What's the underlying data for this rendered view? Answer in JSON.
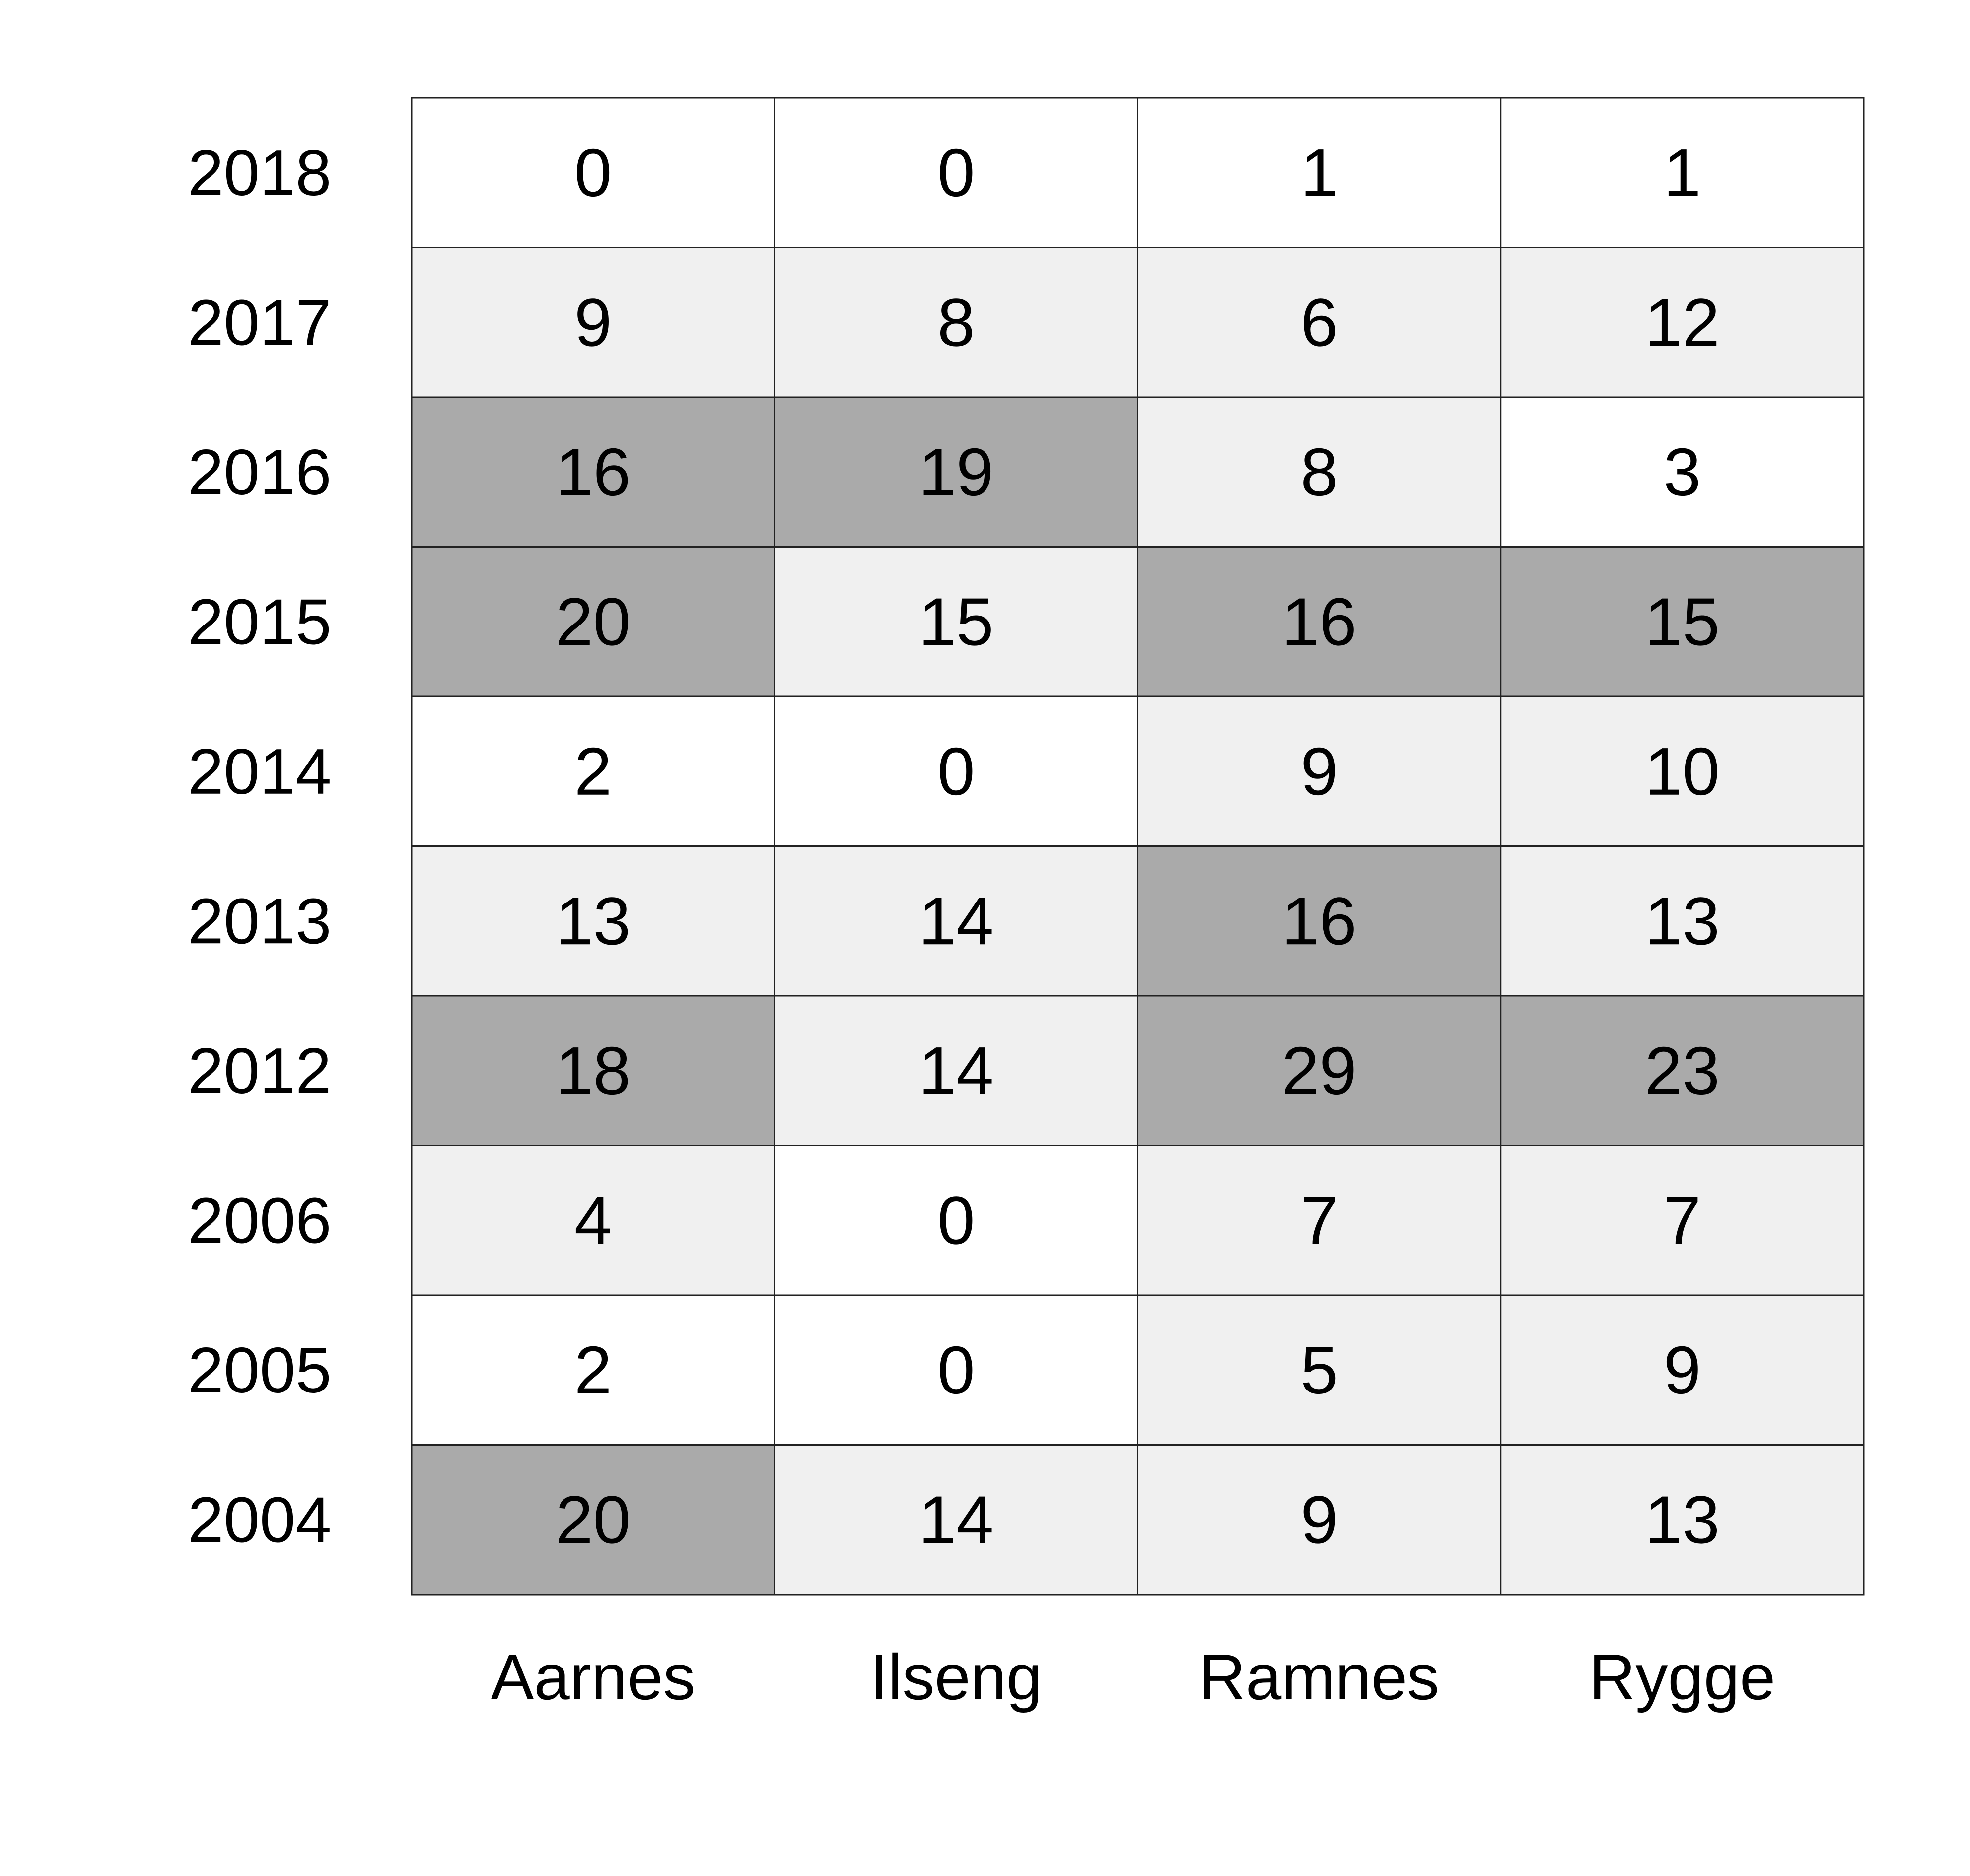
{
  "chart_data": {
    "type": "heatmap",
    "title": "",
    "xlabel": "",
    "ylabel": "",
    "columns": [
      "Aarnes",
      "Ilseng",
      "Ramnes",
      "Rygge"
    ],
    "rows": [
      "2018",
      "2017",
      "2016",
      "2015",
      "2014",
      "2013",
      "2012",
      "2006",
      "2005",
      "2004"
    ],
    "values": [
      [
        0,
        0,
        1,
        1
      ],
      [
        9,
        8,
        6,
        12
      ],
      [
        16,
        19,
        8,
        3
      ],
      [
        20,
        15,
        16,
        15
      ],
      [
        2,
        0,
        9,
        10
      ],
      [
        13,
        14,
        16,
        13
      ],
      [
        18,
        14,
        29,
        23
      ],
      [
        4,
        0,
        7,
        7
      ],
      [
        2,
        0,
        5,
        9
      ],
      [
        20,
        14,
        9,
        13
      ]
    ],
    "levels": [
      [
        0,
        0,
        0,
        0
      ],
      [
        1,
        1,
        1,
        1
      ],
      [
        2,
        2,
        1,
        0
      ],
      [
        2,
        1,
        2,
        2
      ],
      [
        0,
        0,
        1,
        1
      ],
      [
        1,
        1,
        2,
        1
      ],
      [
        2,
        1,
        2,
        2
      ],
      [
        1,
        0,
        1,
        1
      ],
      [
        0,
        0,
        1,
        1
      ],
      [
        2,
        1,
        1,
        1
      ]
    ],
    "level_colors": [
      "#ffffff",
      "#f0f0f0",
      "#aaaaaa"
    ],
    "border_color": "#222222",
    "text_color": "#000000",
    "legend": false,
    "grid": true
  }
}
